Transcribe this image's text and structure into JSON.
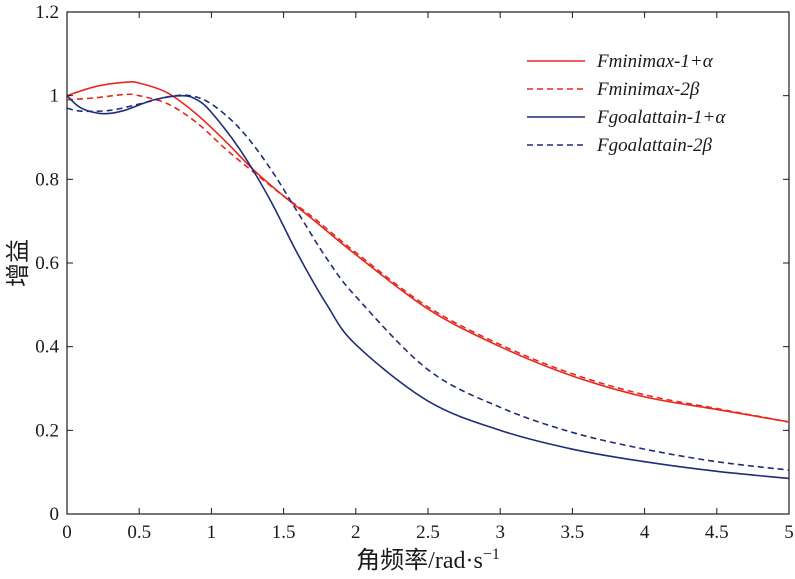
{
  "chart_data": {
    "type": "line",
    "title": "",
    "xlabel": "角频率/rad·s",
    "xlabel_sup": "−1",
    "ylabel": "增益",
    "xlim": [
      0,
      5
    ],
    "ylim": [
      0,
      1.2
    ],
    "xticks": [
      0,
      0.5,
      1,
      1.5,
      2,
      2.5,
      3,
      3.5,
      4,
      4.5,
      5
    ],
    "xtick_labels": [
      "0",
      "0.5",
      "1",
      "1.5",
      "2",
      "2.5",
      "3",
      "3.5",
      "4",
      "4.5",
      "5"
    ],
    "yticks": [
      0,
      0.2,
      0.4,
      0.6,
      0.8,
      1.0,
      1.2
    ],
    "ytick_labels": [
      "0",
      "0.2",
      "0.4",
      "0.6",
      "0.8",
      "1",
      "1.2"
    ],
    "grid": false,
    "legend_position": "top-right",
    "series": [
      {
        "name": "Fminimax-1+α",
        "color": "#e8281e",
        "dash": "solid",
        "x": [
          0,
          0.2,
          0.4,
          0.5,
          0.7,
          0.9,
          1.1,
          1.3,
          1.5,
          1.7,
          2.0,
          2.5,
          3.0,
          3.5,
          4.0,
          4.5,
          5.0
        ],
        "y": [
          1.0,
          1.022,
          1.032,
          1.03,
          1.006,
          0.955,
          0.89,
          0.82,
          0.76,
          0.705,
          0.62,
          0.49,
          0.4,
          0.33,
          0.28,
          0.25,
          0.22
        ]
      },
      {
        "name": "Fminimax-2β",
        "color": "#e8281e",
        "dash": "dashed",
        "x": [
          0,
          0.2,
          0.4,
          0.5,
          0.7,
          0.9,
          1.1,
          1.3,
          1.5,
          1.7,
          2.0,
          2.5,
          3.0,
          3.5,
          4.0,
          4.5,
          5.0
        ],
        "y": [
          0.99,
          0.995,
          1.003,
          1.0,
          0.98,
          0.935,
          0.872,
          0.815,
          0.76,
          0.71,
          0.625,
          0.495,
          0.405,
          0.335,
          0.285,
          0.252,
          0.22
        ]
      },
      {
        "name": "Fgoalattain-1+α",
        "color": "#1f2d7a",
        "dash": "solid",
        "x": [
          0,
          0.1,
          0.25,
          0.4,
          0.6,
          0.8,
          0.9,
          1.0,
          1.2,
          1.4,
          1.6,
          1.8,
          2.0,
          2.5,
          3.0,
          3.5,
          4.0,
          4.5,
          5.0
        ],
        "y": [
          1.0,
          0.97,
          0.957,
          0.965,
          0.99,
          1.0,
          0.99,
          0.96,
          0.87,
          0.755,
          0.62,
          0.5,
          0.405,
          0.27,
          0.2,
          0.155,
          0.125,
          0.102,
          0.085
        ]
      },
      {
        "name": "Fgoalattain-2β",
        "color": "#1f2d7a",
        "dash": "dashed",
        "x": [
          0,
          0.1,
          0.3,
          0.5,
          0.7,
          0.85,
          1.0,
          1.2,
          1.4,
          1.6,
          1.8,
          2.0,
          2.5,
          3.0,
          3.5,
          4.0,
          4.5,
          5.0
        ],
        "y": [
          0.97,
          0.963,
          0.965,
          0.98,
          0.997,
          1.0,
          0.98,
          0.92,
          0.83,
          0.72,
          0.61,
          0.52,
          0.345,
          0.255,
          0.195,
          0.155,
          0.125,
          0.105
        ]
      }
    ]
  }
}
